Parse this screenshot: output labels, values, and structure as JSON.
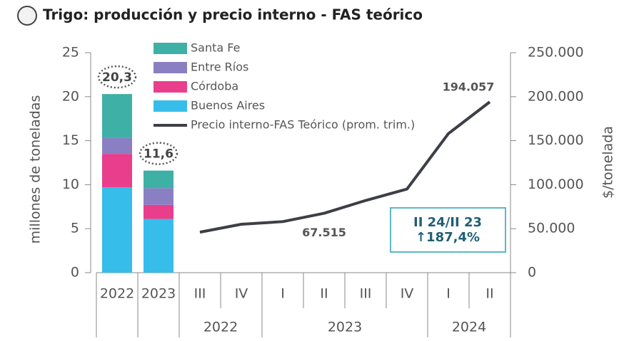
{
  "chart_data": {
    "type": "combo",
    "title": "Trigo: producción y precio interno - FAS teórico",
    "y_label": "millones de toneladas",
    "y2_label": "$/tonelada",
    "categories": [
      "2022",
      "2023",
      "III",
      "IV",
      "I",
      "II",
      "III",
      "IV",
      "I",
      "II"
    ],
    "x_groups": [
      "2022",
      "2023",
      "2024"
    ],
    "category_groups": [
      null,
      null,
      0,
      0,
      1,
      1,
      1,
      1,
      2,
      2
    ],
    "series": [
      {
        "name": "Buenos Aires",
        "color": "#36bdea",
        "values": [
          9.7,
          6.1,
          null,
          null,
          null,
          null,
          null,
          null,
          null,
          null
        ]
      },
      {
        "name": "Córdoba",
        "color": "#e83e8c",
        "values": [
          3.8,
          1.6,
          null,
          null,
          null,
          null,
          null,
          null,
          null,
          null
        ]
      },
      {
        "name": "Entre Ríos",
        "color": "#8b7fc4",
        "values": [
          1.8,
          1.9,
          null,
          null,
          null,
          null,
          null,
          null,
          null,
          null
        ]
      },
      {
        "name": "Santa Fe",
        "color": "#3fb0a5",
        "values": [
          5.0,
          2.0,
          null,
          null,
          null,
          null,
          null,
          null,
          null,
          null
        ]
      },
      {
        "name": "Precio interno-FAS Teórico (prom. trim.)",
        "color": "#3d3f46",
        "axis": "y2",
        "values": [
          null,
          null,
          46000,
          55000,
          58000,
          67515,
          82000,
          95000,
          158000,
          194057
        ],
        "value_labels": [
          null,
          null,
          null,
          null,
          null,
          "67.515",
          null,
          null,
          null,
          "194.057"
        ]
      }
    ],
    "total_labels": [
      "20,3",
      "11,6"
    ],
    "annotation": {
      "lines": [
        "II 24/II 23",
        "↑187,4%"
      ]
    },
    "ylim": [
      0,
      25
    ],
    "yticks": [
      0,
      5,
      10,
      15,
      20,
      25
    ],
    "y2lim": [
      0,
      250000
    ],
    "y2ticks": [
      0,
      {
        "value": 50000,
        "label": "50.000"
      },
      {
        "value": 100000,
        "label": "100.000"
      },
      {
        "value": 150000,
        "label": "150.000"
      },
      {
        "value": 200000,
        "label": "200.000"
      },
      {
        "value": 250000,
        "label": "250.000"
      }
    ]
  }
}
